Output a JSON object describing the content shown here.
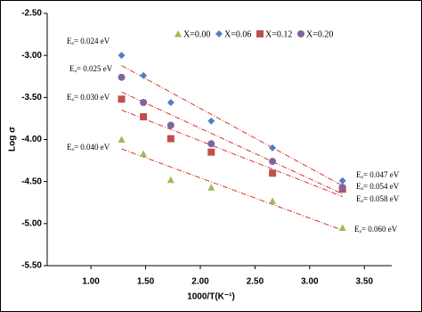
{
  "chart_data": {
    "type": "scatter",
    "xlabel": "1000/T(K⁻¹)",
    "ylabel": "Log σ",
    "xlim": [
      0.6,
      3.75
    ],
    "ylim": [
      -5.5,
      -2.5
    ],
    "xticks": [
      {
        "value": 1,
        "label": "1.00"
      },
      {
        "value": 1.5,
        "label": "1.50"
      },
      {
        "value": 2,
        "label": "2.00"
      },
      {
        "value": 2.5,
        "label": "2.50"
      },
      {
        "value": 3,
        "label": "3.00"
      },
      {
        "value": 3.5,
        "label": "3.50"
      }
    ],
    "yticks": [
      {
        "value": -2.5,
        "label": "-2.50"
      },
      {
        "value": -3,
        "label": "-3.00"
      },
      {
        "value": -3.5,
        "label": "-3.50"
      },
      {
        "value": -4,
        "label": "-4.00"
      },
      {
        "value": -4.5,
        "label": "-4.50"
      },
      {
        "value": -5,
        "label": "-5.00"
      },
      {
        "value": -5.5,
        "label": "-5.50"
      }
    ],
    "x": [
      1.28,
      1.48,
      1.73,
      2.1,
      2.66,
      3.3
    ],
    "trendline_color": "#d9342b",
    "series": [
      {
        "name": "X=0.00",
        "color": "#9bbb59",
        "marker": "triangle",
        "values": [
          -4.0,
          -4.17,
          -4.48,
          -4.57,
          -4.73,
          -5.05
        ]
      },
      {
        "name": "X=0.06",
        "color": "#4f81bd",
        "marker": "diamond",
        "values": [
          -3.0,
          -3.24,
          -3.56,
          -3.78,
          -4.1,
          -4.49
        ]
      },
      {
        "name": "X=0.12",
        "color": "#c0504d",
        "marker": "square",
        "values": [
          -3.52,
          -3.73,
          -3.99,
          -4.15,
          -4.4,
          -4.59
        ]
      },
      {
        "name": "X=0.20",
        "color": "#8064a2",
        "marker": "circle",
        "values": [
          -3.26,
          -3.56,
          -3.83,
          -4.05,
          -4.26,
          -4.57
        ]
      }
    ],
    "annotations": [
      "Eₐ= 0.024 eV",
      "Eₐ= 0.025 eV",
      "Eₐ= 0.030 eV",
      "Eₐ= 0.040 eV",
      "Eₐ= 0.047 eV",
      "Eₐ= 0.054 eV",
      "Eₐ= 0.058 eV",
      "Eₐ= 0.060 eV"
    ]
  }
}
